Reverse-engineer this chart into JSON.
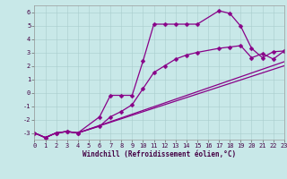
{
  "background_color": "#c8e8e8",
  "grid_color": "#a8cccc",
  "line_color": "#880088",
  "markersize": 2.5,
  "linewidth": 0.9,
  "xlim": [
    0,
    23
  ],
  "ylim": [
    -3.5,
    6.5
  ],
  "yticks": [
    -3,
    -2,
    -1,
    0,
    1,
    2,
    3,
    4,
    5,
    6
  ],
  "xticks": [
    0,
    1,
    2,
    3,
    4,
    5,
    6,
    7,
    8,
    9,
    10,
    11,
    12,
    13,
    14,
    15,
    16,
    17,
    18,
    19,
    20,
    21,
    22,
    23
  ],
  "xlabel": "Windchill (Refroidissement éolien,°C)",
  "xlabel_fontsize": 5.5,
  "tick_fontsize": 5.0,
  "series": [
    {
      "x": [
        0,
        1,
        2,
        3,
        4,
        6,
        7,
        8,
        9,
        10,
        11,
        12,
        13,
        14,
        15,
        17,
        18,
        19,
        20,
        21,
        22,
        23
      ],
      "y": [
        -3.0,
        -3.35,
        -3.0,
        -2.9,
        -3.0,
        -1.8,
        -0.2,
        -0.2,
        -0.2,
        2.35,
        5.1,
        5.1,
        5.1,
        5.1,
        5.1,
        6.1,
        5.9,
        4.95,
        3.3,
        2.6,
        3.05,
        3.1
      ],
      "marker": "D"
    },
    {
      "x": [
        0,
        1,
        2,
        3,
        4,
        6,
        7,
        8,
        9,
        10,
        11,
        12,
        13,
        14,
        15,
        17,
        18,
        19,
        20,
        21,
        22,
        23
      ],
      "y": [
        -3.0,
        -3.35,
        -3.0,
        -2.9,
        -3.0,
        -2.5,
        -1.8,
        -1.4,
        -0.9,
        0.3,
        1.5,
        2.0,
        2.5,
        2.8,
        3.0,
        3.3,
        3.4,
        3.5,
        2.6,
        2.9,
        2.5,
        3.1
      ],
      "marker": "D"
    },
    {
      "x": [
        0,
        1,
        2,
        3,
        4,
        23
      ],
      "y": [
        -3.0,
        -3.35,
        -3.0,
        -2.9,
        -3.0,
        2.3
      ],
      "marker": null
    },
    {
      "x": [
        0,
        1,
        2,
        3,
        4,
        23
      ],
      "y": [
        -3.0,
        -3.35,
        -3.0,
        -2.9,
        -3.0,
        2.0
      ],
      "marker": null
    }
  ]
}
